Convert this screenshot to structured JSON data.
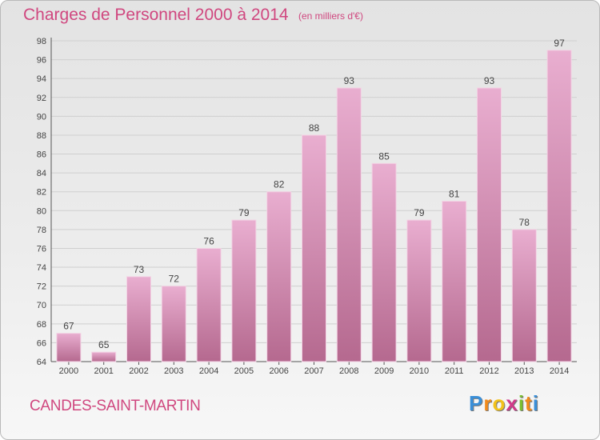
{
  "header": {
    "title": "Charges de Personnel 2000 à 2014",
    "subtitle": "(en milliers d'€)"
  },
  "footer": {
    "commune": "CANDES-SAINT-MARTIN",
    "logo_letters": [
      "P",
      "r",
      "o",
      "x",
      "i",
      "t",
      "i"
    ]
  },
  "colors": {
    "bar": "#d98db5",
    "bar_light": "#e6a9cb",
    "bar_dark": "#b66a93",
    "title": "#d0477f",
    "logo": [
      "#3a8fd8",
      "#f28a1a",
      "#f2c21a",
      "#d13a8a",
      "#7abf2f",
      "#f28a1a",
      "#3a8fd8"
    ]
  },
  "chart_data": {
    "type": "bar",
    "title": "Charges de Personnel 2000 à 2014",
    "subtitle": "(en milliers d'€)",
    "categories": [
      "2000",
      "2001",
      "2002",
      "2003",
      "2004",
      "2005",
      "2006",
      "2007",
      "2008",
      "2009",
      "2010",
      "2011",
      "2012",
      "2013",
      "2014"
    ],
    "values": [
      67,
      65,
      73,
      72,
      76,
      79,
      82,
      88,
      93,
      85,
      79,
      81,
      93,
      78,
      97
    ],
    "ylim": [
      64,
      98
    ],
    "yticks": [
      64,
      66,
      68,
      70,
      72,
      74,
      76,
      78,
      80,
      82,
      84,
      86,
      88,
      90,
      92,
      94,
      96,
      98
    ],
    "grid": true,
    "legend": "none"
  }
}
